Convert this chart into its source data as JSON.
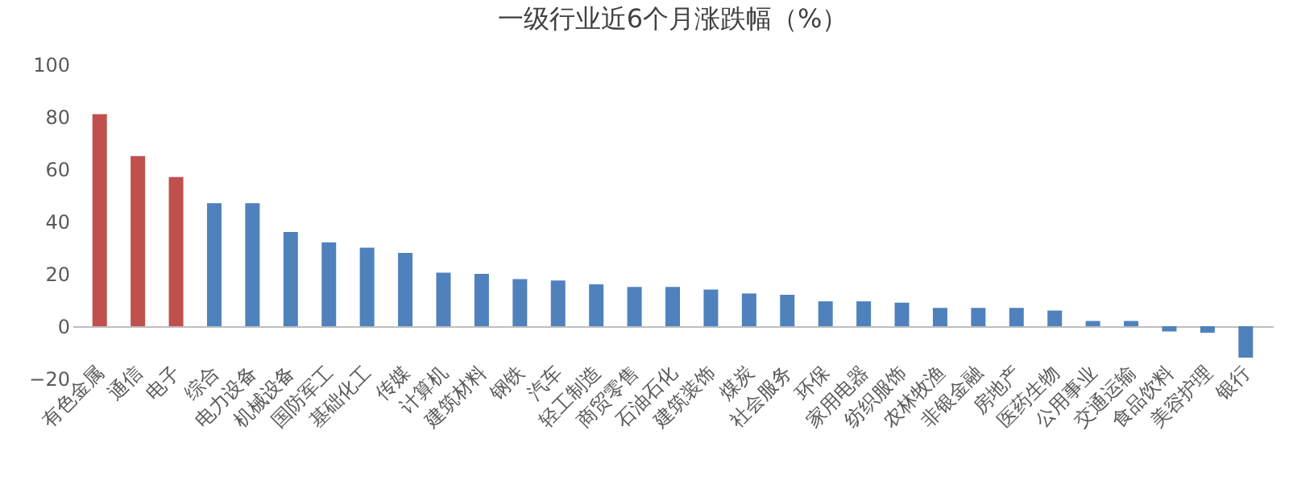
{
  "chart_data": {
    "type": "bar",
    "title": "一级行业近6个月涨跌幅（%）",
    "categories": [
      "有色金属",
      "通信",
      "电子",
      "综合",
      "电力设备",
      "机械设备",
      "国防军工",
      "基础化工",
      "传媒",
      "计算机",
      "建筑材料",
      "钢铁",
      "汽车",
      "轻工制造",
      "商贸零售",
      "石油石化",
      "建筑装饰",
      "煤炭",
      "社会服务",
      "环保",
      "家用电器",
      "纺织服饰",
      "农林牧渔",
      "非银金融",
      "房地产",
      "医药生物",
      "公用事业",
      "交通运输",
      "食品饮料",
      "美容护理",
      "银行"
    ],
    "values": [
      81,
      65,
      57,
      47,
      47,
      36,
      32,
      30,
      28,
      20.5,
      20,
      18,
      17.5,
      16,
      15,
      15,
      14,
      12.5,
      12,
      9.5,
      9.5,
      9,
      7,
      7,
      7,
      6,
      2,
      2,
      -2,
      -2.5,
      -12
    ],
    "colors": [
      "#c0504d",
      "#c0504d",
      "#c0504d",
      "#4f81bd",
      "#4f81bd",
      "#4f81bd",
      "#4f81bd",
      "#4f81bd",
      "#4f81bd",
      "#4f81bd",
      "#4f81bd",
      "#4f81bd",
      "#4f81bd",
      "#4f81bd",
      "#4f81bd",
      "#4f81bd",
      "#4f81bd",
      "#4f81bd",
      "#4f81bd",
      "#4f81bd",
      "#4f81bd",
      "#4f81bd",
      "#4f81bd",
      "#4f81bd",
      "#4f81bd",
      "#4f81bd",
      "#4f81bd",
      "#4f81bd",
      "#4f81bd",
      "#4f81bd",
      "#4f81bd"
    ],
    "ylim": [
      -20,
      100
    ],
    "yticks": [
      -20,
      0,
      20,
      40,
      60,
      80,
      100
    ],
    "grid": false
  }
}
